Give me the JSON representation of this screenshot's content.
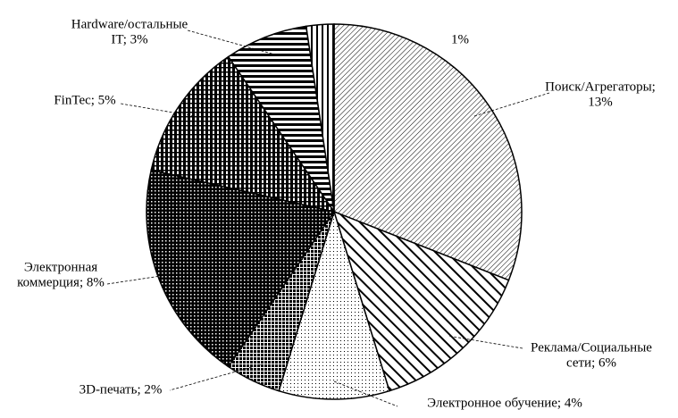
{
  "chart_data": {
    "type": "pie",
    "labels": [
      [
        "Поиск/Агрегаторы;",
        "13%"
      ],
      [
        "Реклама/Социальные",
        "сети; 6%"
      ],
      [
        "Электронное  обучение; 4%"
      ],
      [
        "3D-печать; 2%"
      ],
      [
        "Электронная",
        "коммерция; 8%"
      ],
      [
        "FinTec; 5%"
      ],
      [
        "Hardware/остальные",
        "IT; 3%"
      ],
      [
        "1%"
      ]
    ],
    "values": [
      13,
      6,
      4,
      2,
      8,
      5,
      3,
      1
    ],
    "patterns": [
      "fine-diagonal",
      "bold-diagonal",
      "dots",
      "dense-grid",
      "crosshatch",
      "checker",
      "horizontal-stripes",
      "vertical-stripes"
    ]
  }
}
